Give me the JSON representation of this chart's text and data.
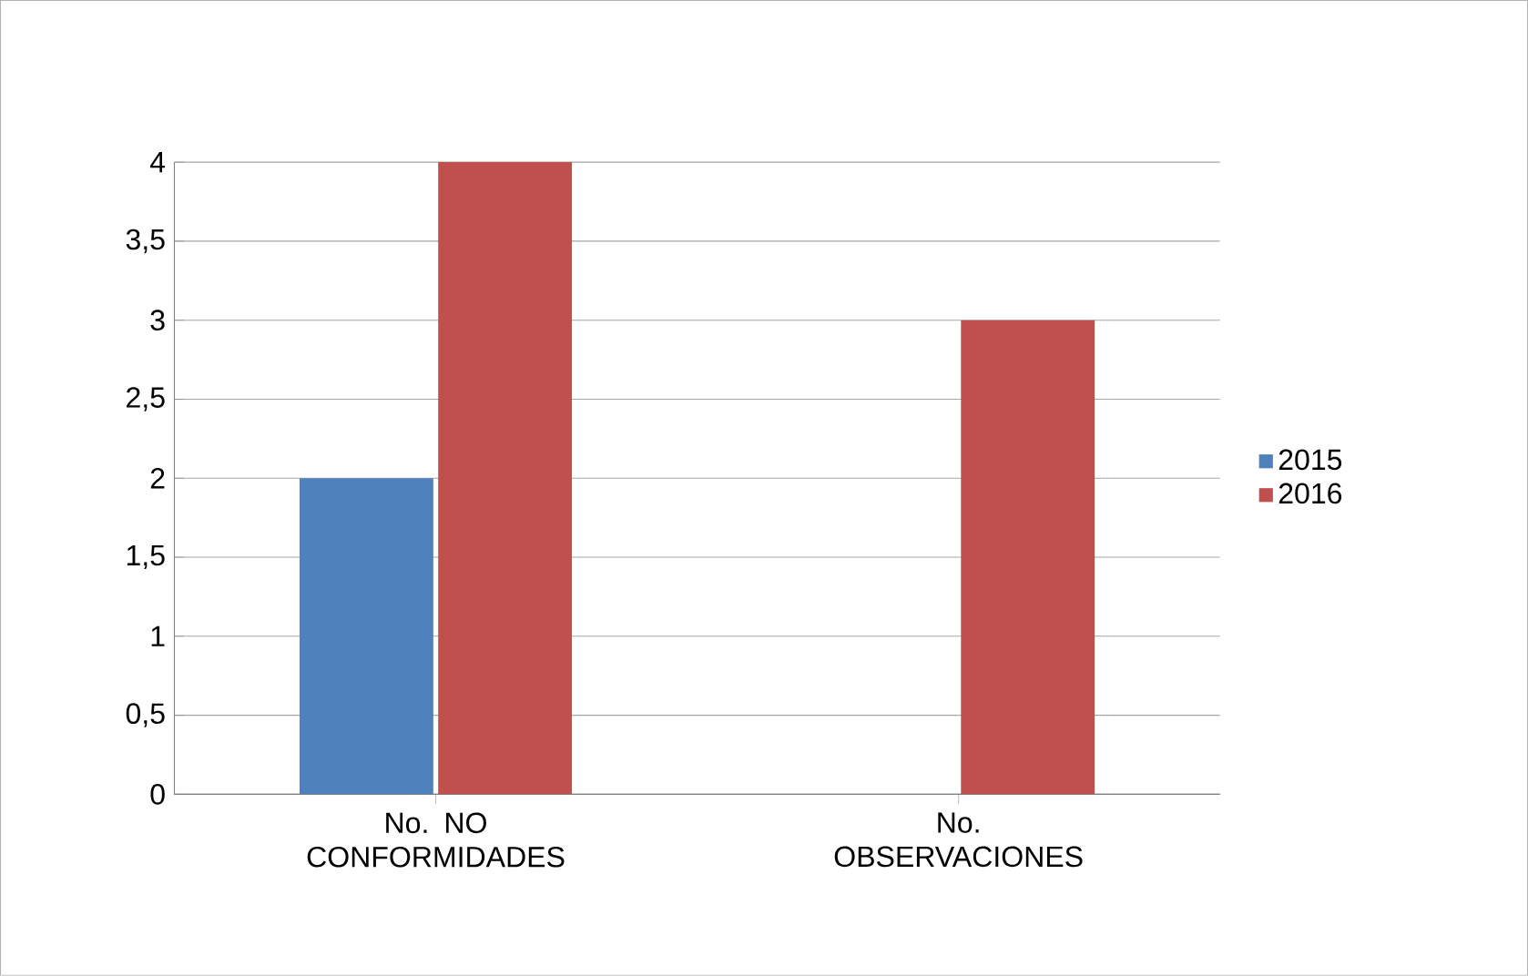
{
  "chart_data": {
    "type": "bar",
    "categories": [
      "No. NO CONFORMIDADES",
      "No. OBSERVACIONES"
    ],
    "series": [
      {
        "name": "2015",
        "color": "#4f81bd",
        "values": [
          2,
          0
        ]
      },
      {
        "name": "2016",
        "color": "#c0504d",
        "values": [
          4,
          3
        ]
      }
    ],
    "ylim": [
      0,
      4
    ],
    "yticks": [
      0,
      {
        "value": 0.5,
        "label": "0,5"
      },
      1,
      {
        "value": 1.5,
        "label": "1,5"
      },
      2,
      {
        "value": 2.5,
        "label": "2,5"
      },
      3,
      {
        "value": 3.5,
        "label": "3,5"
      },
      4
    ],
    "grid": "y",
    "legend": "right"
  }
}
